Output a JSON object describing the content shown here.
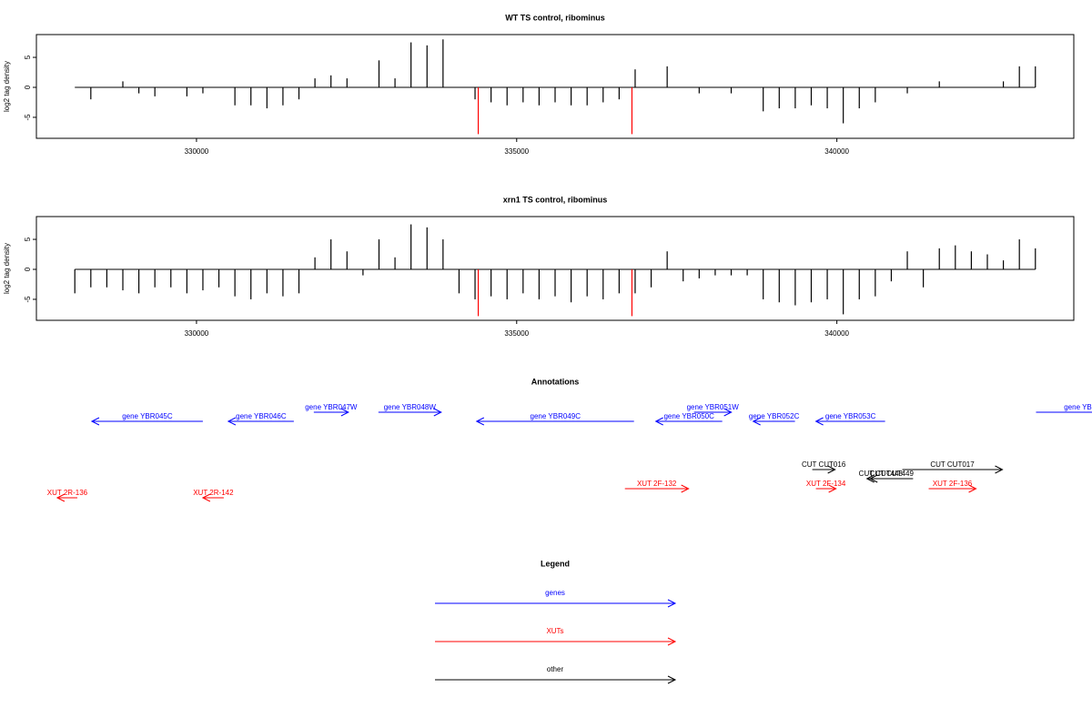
{
  "chart_data": [
    {
      "type": "bar",
      "title": "WT TS control, ribominus",
      "ylabel": "log2 tag density",
      "xlim": [
        327500,
        343700
      ],
      "ylim": [
        -8.5,
        8.8
      ],
      "xticks": [
        330000,
        335000,
        340000
      ],
      "yticks": [
        -5,
        0,
        5
      ],
      "series": [
        {
          "color": "#000000",
          "x": [
            328100,
            328350,
            328600,
            328850,
            329100,
            329350,
            329600,
            329850,
            330100,
            330350,
            330600,
            330850,
            331100,
            331350,
            331600,
            331850,
            332100,
            332350,
            332600,
            332850,
            333100,
            333350,
            333600,
            333850,
            334100,
            334350,
            334600,
            334850,
            335100,
            335350,
            335600,
            335850,
            336100,
            336350,
            336600,
            336850,
            337100,
            337350,
            337600,
            337850,
            338100,
            338350,
            338600,
            338850,
            339100,
            339350,
            339600,
            339850,
            340100,
            340350,
            340600,
            340850,
            341100,
            341350,
            341600,
            341850,
            342100,
            342350,
            342600,
            342850,
            343100
          ],
          "values": [
            0,
            -2,
            0,
            1,
            -1,
            -1.5,
            0,
            -1.5,
            -1,
            0,
            -3,
            -3,
            -3.5,
            -3,
            -2,
            1.5,
            2,
            1.5,
            0,
            4.5,
            1.5,
            7.5,
            7,
            8,
            0,
            -2,
            -2.5,
            -3,
            -2.5,
            -3,
            -2.5,
            -3,
            -3,
            -2.5,
            -2,
            3,
            0,
            3.5,
            0,
            -1,
            0,
            -1,
            0,
            -4,
            -3.5,
            -3.5,
            -3,
            -3.5,
            -6,
            -3.5,
            -2.5,
            0,
            -1,
            0,
            1,
            0,
            0,
            0,
            1,
            3.5,
            3.5
          ]
        },
        {
          "color": "#ff0000",
          "x": [
            334400,
            336800
          ],
          "values": [
            -7.8,
            -7.8
          ]
        }
      ]
    },
    {
      "type": "bar",
      "title": "xrn1 TS control, ribominus",
      "ylabel": "log2 tag density",
      "xlim": [
        327500,
        343700
      ],
      "ylim": [
        -8.5,
        8.8
      ],
      "xticks": [
        330000,
        335000,
        340000
      ],
      "yticks": [
        -5,
        0,
        5
      ],
      "series": [
        {
          "color": "#000000",
          "x": [
            328100,
            328350,
            328600,
            328850,
            329100,
            329350,
            329600,
            329850,
            330100,
            330350,
            330600,
            330850,
            331100,
            331350,
            331600,
            331850,
            332100,
            332350,
            332600,
            332850,
            333100,
            333350,
            333600,
            333850,
            334100,
            334350,
            334600,
            334850,
            335100,
            335350,
            335600,
            335850,
            336100,
            336350,
            336600,
            336850,
            337100,
            337350,
            337600,
            337850,
            338100,
            338350,
            338600,
            338850,
            339100,
            339350,
            339600,
            339850,
            340100,
            340350,
            340600,
            340850,
            341100,
            341350,
            341600,
            341850,
            342100,
            342350,
            342600,
            342850,
            343100
          ],
          "values": [
            -4,
            -3,
            -3,
            -3.5,
            -4,
            -3,
            -3,
            -4,
            -3.5,
            -3,
            -4.5,
            -5,
            -4,
            -4.5,
            -4,
            2,
            5,
            3,
            -1,
            5,
            2,
            7.5,
            7,
            5,
            -4,
            -5,
            -4.5,
            -5,
            -4,
            -5,
            -4.5,
            -5.5,
            -4.5,
            -5,
            -4,
            -4,
            -3,
            3,
            -2,
            -1.5,
            -1,
            -1,
            -1,
            -5,
            -5.5,
            -6,
            -5.5,
            -5,
            -7.5,
            -5,
            -4.5,
            -2,
            3,
            -3,
            3.5,
            4,
            3,
            2.5,
            1.5,
            5,
            3.5
          ]
        },
        {
          "color": "#ff0000",
          "x": [
            334400,
            336800
          ],
          "values": [
            -7.8,
            -7.8
          ]
        }
      ]
    }
  ],
  "annotations": {
    "title": "Annotations",
    "groups": [
      {
        "legend": "genes",
        "color": "#0000ff",
        "features": [
          {
            "label": "gene YBR045C",
            "from": 330099,
            "to": 328366
          },
          {
            "label": "gene YBR046C",
            "from": 331520,
            "to": 330497
          },
          {
            "label": "gene YBR047W",
            "from": 331832,
            "to": 332372
          },
          {
            "label": "gene YBR048W",
            "from": 332841,
            "to": 333821
          },
          {
            "label": "gene YBR049C",
            "from": 336832,
            "to": 334375
          },
          {
            "label": "gene YBR050C",
            "from": 338210,
            "to": 337173
          },
          {
            "label": "gene YBR051W",
            "from": 337770,
            "to": 338352
          },
          {
            "label": "gene YBR052C",
            "from": 339346,
            "to": 338693
          },
          {
            "label": "gene YBR053C",
            "from": 340753,
            "to": 339673
          },
          {
            "label": "gene YBR",
            "from": 343110,
            "to": 344500
          }
        ]
      },
      {
        "legend": "XUTs",
        "color": "#ff0000",
        "features": [
          {
            "label": "XUT 2R-136",
            "from": 328139,
            "to": 327826
          },
          {
            "label": "XUT 2R-142",
            "from": 330426,
            "to": 330099
          },
          {
            "label": "XUT 2F-132",
            "from": 336690,
            "to": 337684
          },
          {
            "label": "XUT 2F-134",
            "from": 339673,
            "to": 339986
          },
          {
            "label": "XUT 2F-136",
            "from": 341434,
            "to": 342173
          }
        ]
      },
      {
        "legend": "other",
        "color": "#000000",
        "features": [
          {
            "label": "CUT CUT016",
            "from": 339616,
            "to": 339972
          },
          {
            "label": "CUT CUT017",
            "from": 341022,
            "to": 342585
          },
          {
            "label": "CUT CUT448",
            "from": 340900,
            "to": 340470
          },
          {
            "label": "CUT CUT449",
            "from": 341190,
            "to": 340520
          }
        ]
      }
    ]
  },
  "legend": {
    "title": "Legend"
  }
}
